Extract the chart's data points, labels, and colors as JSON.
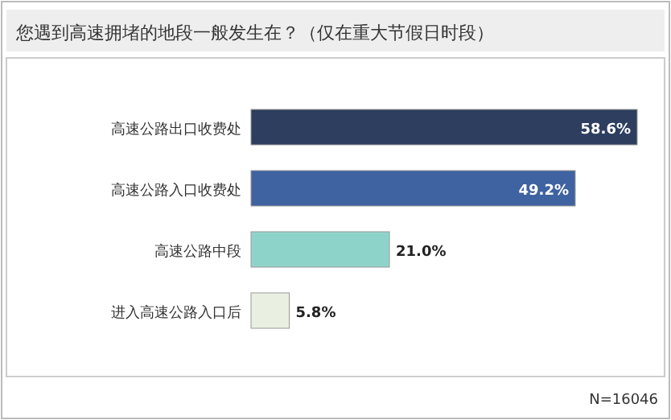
{
  "chart_data": {
    "type": "bar",
    "orientation": "horizontal",
    "title": "您遇到高速拥堵的地段一般发生在？（仅在重大节假日时段）",
    "categories": [
      "高速公路出口收费处",
      "高速公路入口收费处",
      "高速公路中段",
      "进入高速公路入口后"
    ],
    "values": [
      58.6,
      49.2,
      21.0,
      5.8
    ],
    "colors": [
      "#2d3e5e",
      "#3f62a0",
      "#8ed3c9",
      "#e9f0e1"
    ],
    "value_labels": [
      "58.6%",
      "49.2%",
      "21.0%",
      "5.8%"
    ],
    "annotations": [
      "N=16046"
    ]
  }
}
